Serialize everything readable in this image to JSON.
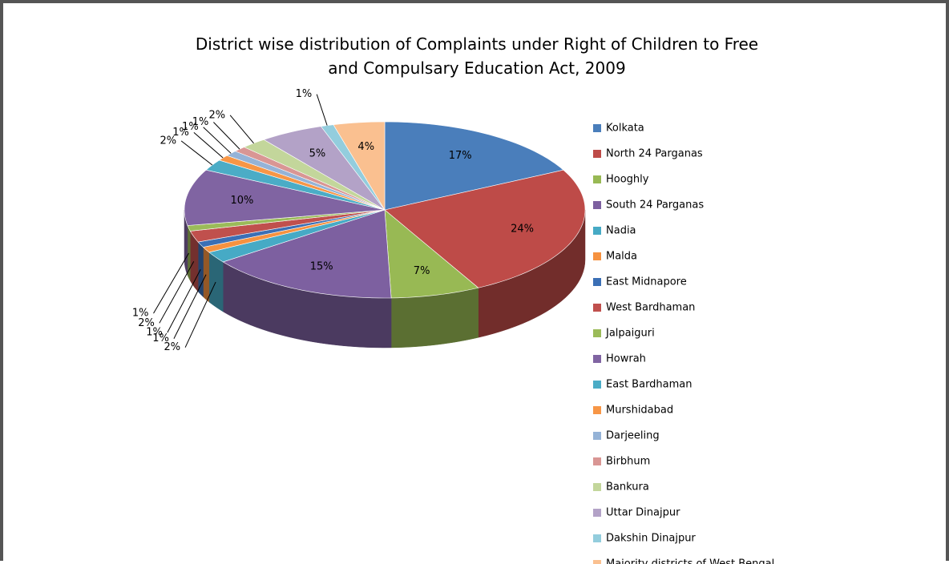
{
  "chart_data": {
    "type": "pie3d",
    "title": "District wise distribution of Complaints under Right of Children to Free and Compulsary Education Act, 2009",
    "categories": [
      "Kolkata",
      "North 24 Parganas",
      "Hooghly",
      "South 24 Parganas",
      "Nadia",
      "Malda",
      "East Midnapore",
      "West Bardhaman",
      "Jalpaiguri",
      "Howrah",
      "East Bardhaman",
      "Murshidabad",
      "Darjeeling",
      "Birbhum",
      "Bankura",
      "Uttar Dinajpur",
      "Dakshin Dinajpur",
      "Majority districts of West Bengal"
    ],
    "values": [
      17,
      24,
      7,
      15,
      2,
      1,
      1,
      2,
      1,
      10,
      2,
      1,
      1,
      1,
      2,
      5,
      1,
      4
    ],
    "value_labels": [
      "17%",
      "24%",
      "7%",
      "15%",
      "2%",
      "1%",
      "1%",
      "2%",
      "1%",
      "10%",
      "2%",
      "1%",
      "1%",
      "1%",
      "2%",
      "5%",
      "1%",
      "4%"
    ],
    "colors": [
      "#4a7ebb",
      "#be4b48",
      "#98b954",
      "#7d60a0",
      "#46aac5",
      "#f69240",
      "#3b6fb5",
      "#c0504d",
      "#9bbb59",
      "#8064a2",
      "#4bacc6",
      "#f79646",
      "#95b3d7",
      "#d99694",
      "#c3d69b",
      "#b3a2c7",
      "#93cddd",
      "#fac090"
    ],
    "legend_position": "right"
  }
}
